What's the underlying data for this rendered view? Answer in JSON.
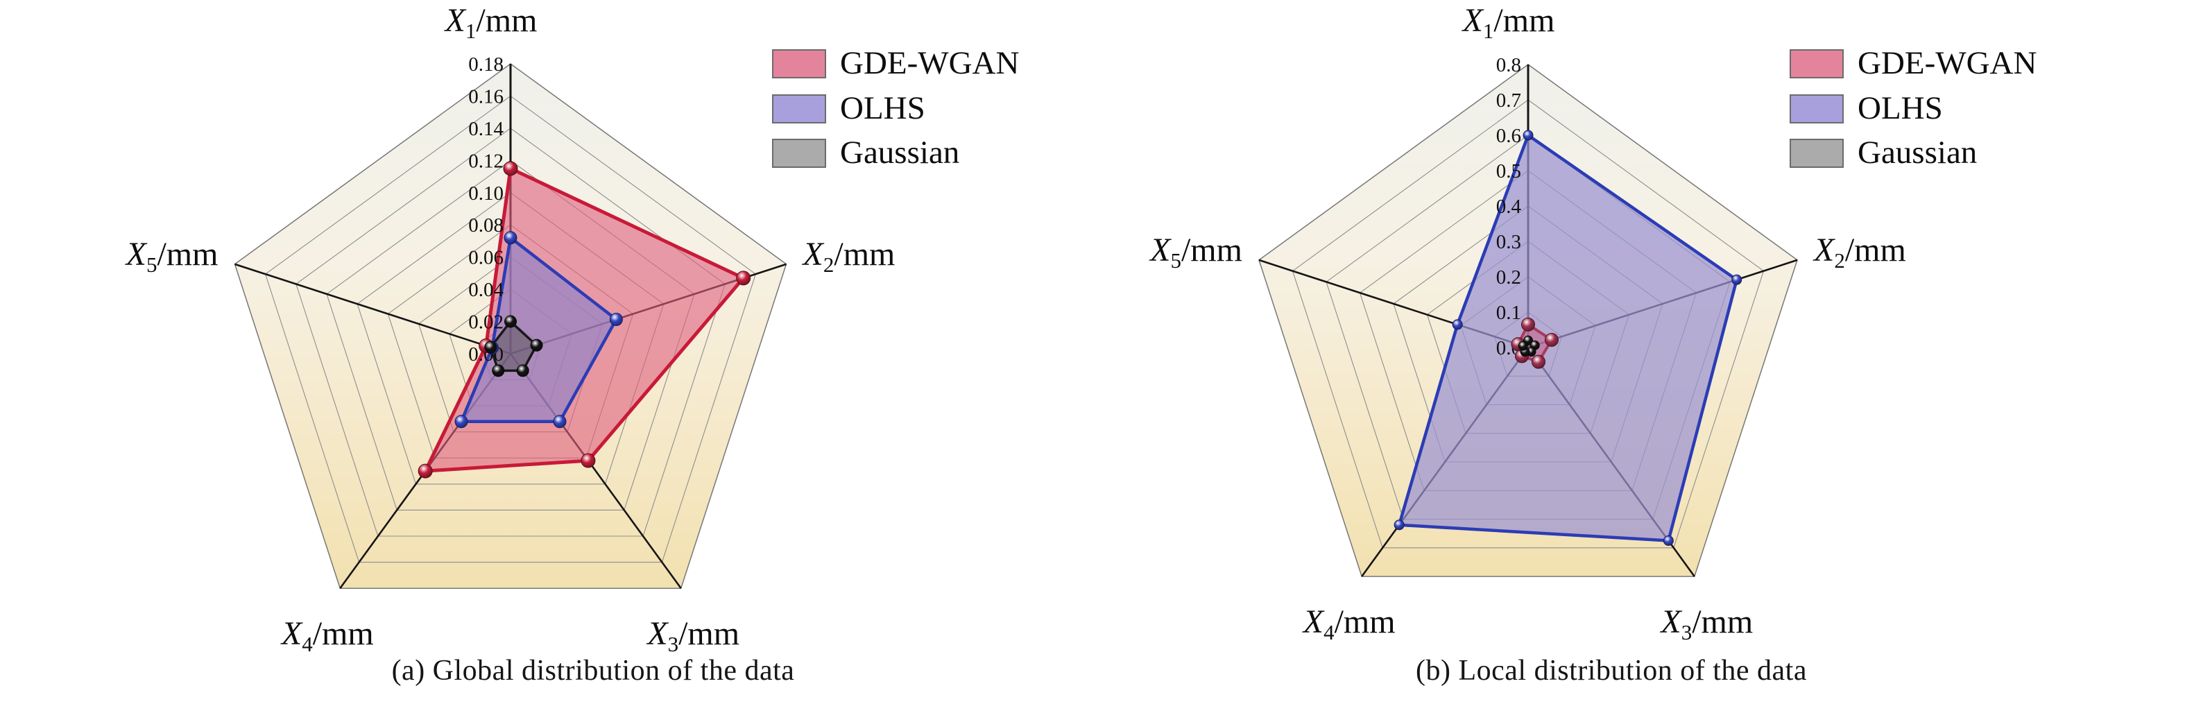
{
  "figure_type": "dual radar (pentagon) comparison figure",
  "colors": {
    "pentagon_gradient": [
      "#f0f1eb",
      "#f6f1e4",
      "#f6ecd3",
      "#f2e1b0"
    ],
    "grid_line": "#8e8e8e",
    "axis_line": "#151515",
    "pentagon_border": "#777777"
  },
  "chart_data": [
    {
      "type": "radar",
      "caption": "(a) Global distribution of the data",
      "axis_labels": [
        {
          "base": "X",
          "sub": "1",
          "unit": "/mm"
        },
        {
          "base": "X",
          "sub": "2",
          "unit": "/mm"
        },
        {
          "base": "X",
          "sub": "3",
          "unit": "/mm"
        },
        {
          "base": "X",
          "sub": "4",
          "unit": "/mm"
        },
        {
          "base": "X",
          "sub": "5",
          "unit": "/mm"
        }
      ],
      "axis_max": 0.18,
      "ylim": [
        0,
        0.18
      ],
      "tick_labels": [
        "0.18",
        "0.16",
        "0.14",
        "0.12",
        "0.10",
        "0.08",
        "0.06",
        "0.04",
        "0.02",
        "0.00"
      ],
      "grid": true,
      "legend_position": "top-right",
      "legend": [
        {
          "label": "GDE-WGAN",
          "swatch": "#e4849c"
        },
        {
          "label": "OLHS",
          "swatch": "#a7a0dc"
        },
        {
          "label": "Gaussian",
          "swatch": "#ababab"
        }
      ],
      "series": [
        {
          "name": "GDE-WGAN",
          "values": [
            0.115,
            0.152,
            0.082,
            0.09,
            0.016
          ],
          "stroke": "#c81a38",
          "stroke_width": 5,
          "fill": "#df5f7e",
          "fill_opacity": 0.6,
          "marker_color": "#c41d39",
          "marker_r": 10
        },
        {
          "name": "OLHS",
          "values": [
            0.072,
            0.069,
            0.052,
            0.052,
            0.012
          ],
          "stroke": "#2b3cb5",
          "stroke_width": 4.5,
          "fill": "#8d83cb",
          "fill_opacity": 0.65,
          "marker_color": "#3445c2",
          "marker_r": 9
        },
        {
          "name": "Gaussian",
          "values": [
            0.02,
            0.017,
            0.013,
            0.013,
            0.013
          ],
          "stroke": "#191919",
          "stroke_width": 3.5,
          "fill": "#4a4a4a",
          "fill_opacity": 0.45,
          "marker_color": "#141414",
          "marker_r": 8.5
        }
      ]
    },
    {
      "type": "radar",
      "caption": "(b) Local distribution of the data",
      "axis_labels": [
        {
          "base": "X",
          "sub": "1",
          "unit": "/mm"
        },
        {
          "base": "X",
          "sub": "2",
          "unit": "/mm"
        },
        {
          "base": "X",
          "sub": "3",
          "unit": "/mm"
        },
        {
          "base": "X",
          "sub": "4",
          "unit": "/mm"
        },
        {
          "base": "X",
          "sub": "5",
          "unit": "/mm"
        }
      ],
      "axis_max": 0.8,
      "ylim": [
        0,
        0.8
      ],
      "tick_labels": [
        "0.8",
        "0.7",
        "0.6",
        "0.5",
        "0.4",
        "0.3",
        "0.2",
        "0.1",
        "0.0"
      ],
      "grid": true,
      "legend_position": "top-right",
      "legend": [
        {
          "label": "GDE-WGAN",
          "swatch": "#e4849c"
        },
        {
          "label": "OLHS",
          "swatch": "#a7a0dc"
        },
        {
          "label": "Gaussian",
          "swatch": "#ababab"
        }
      ],
      "series": [
        {
          "name": "OLHS",
          "values": [
            0.6,
            0.62,
            0.675,
            0.62,
            0.21
          ],
          "stroke": "#2b3cb5",
          "stroke_width": 4.5,
          "fill": "#9b93d1",
          "fill_opacity": 0.72,
          "marker_color": "#3445c2",
          "marker_r": 7
        },
        {
          "name": "GDE-WGAN",
          "values": [
            0.065,
            0.07,
            0.05,
            0.03,
            0.03
          ],
          "stroke": "#a93a5e",
          "stroke_width": 4,
          "fill": "#c75f86",
          "fill_opacity": 0.55,
          "marker_color": "#a0304f",
          "marker_r": 9.5
        },
        {
          "name": "Gaussian",
          "values": [
            0.02,
            0.02,
            0.015,
            0.015,
            0.015
          ],
          "stroke": "#191919",
          "stroke_width": 3,
          "fill": "#4a4a4a",
          "fill_opacity": 0.45,
          "marker_color": "#141414",
          "marker_r": 6.5
        }
      ]
    }
  ]
}
